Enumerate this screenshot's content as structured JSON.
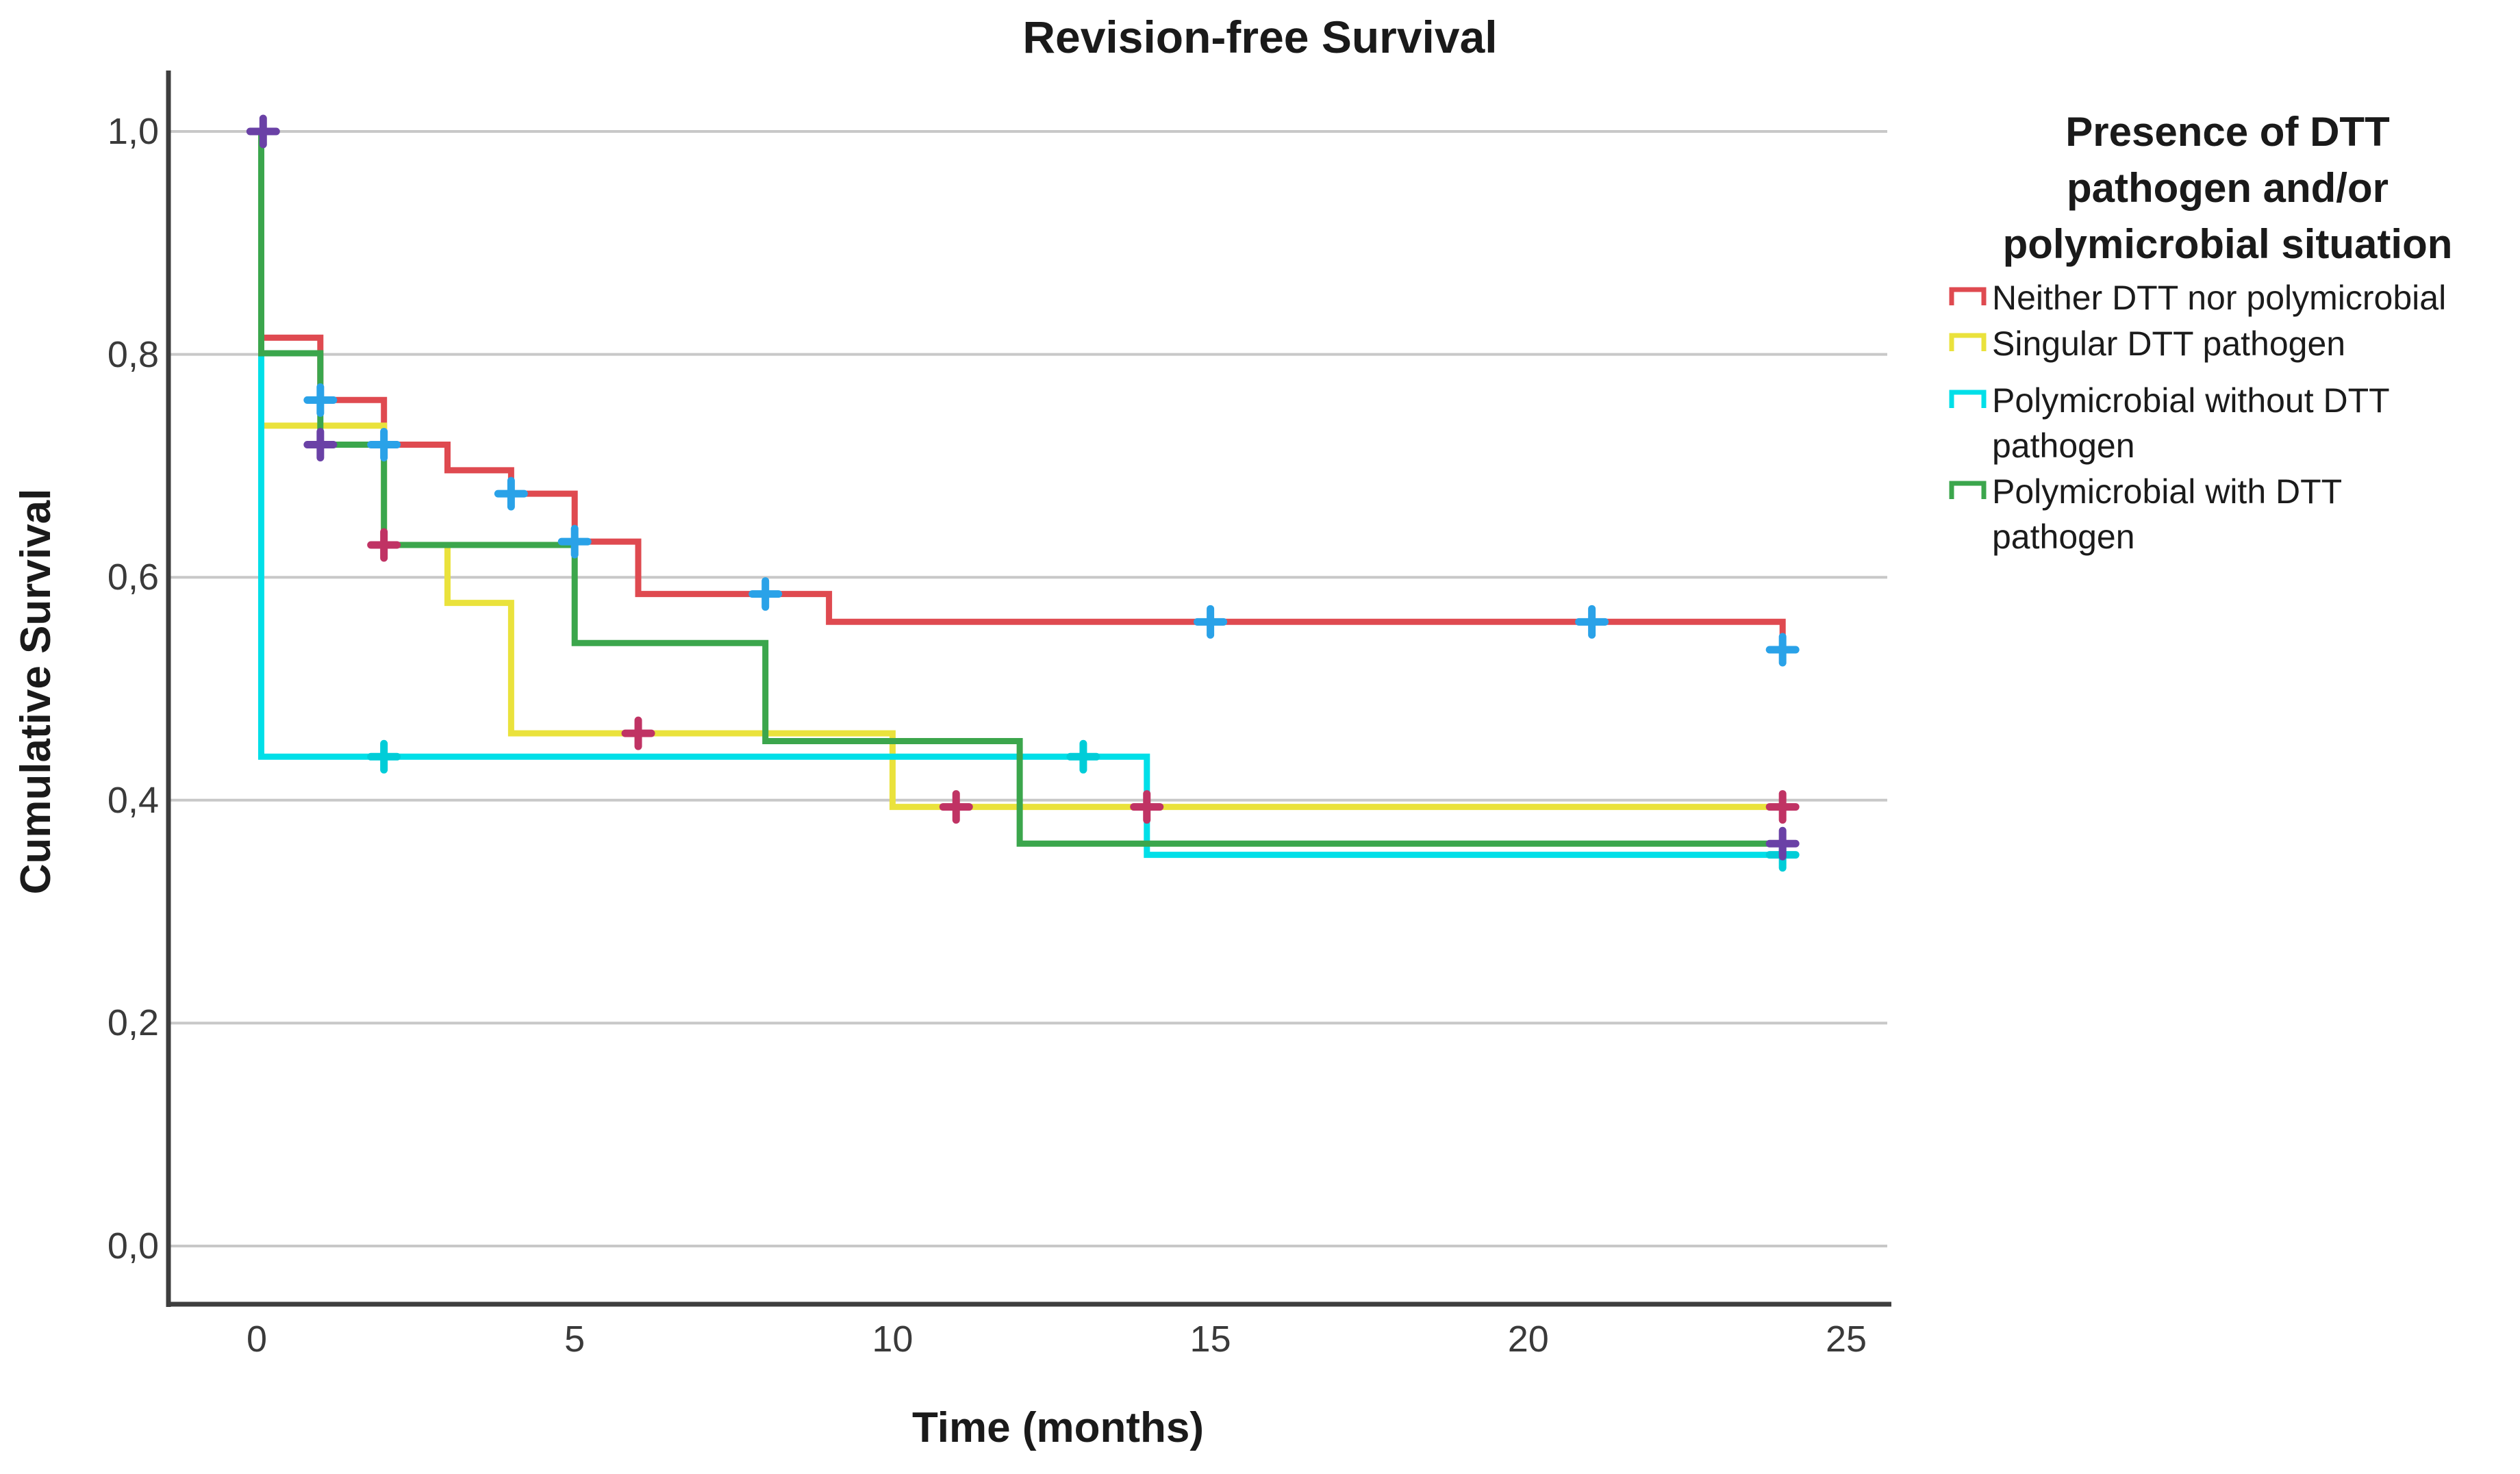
{
  "figure": {
    "title": "Revision-free Survival"
  },
  "chart_data": {
    "type": "line",
    "subtype": "kaplan_meier_step",
    "title": "Revision-free Survival",
    "xlabel": "Time (months)",
    "ylabel": "Cumulative Survival",
    "xlim": [
      0,
      25
    ],
    "ylim": [
      0.0,
      1.0
    ],
    "grid": true,
    "x_ticks": [
      {
        "value": 0,
        "label": "0"
      },
      {
        "value": 5,
        "label": "5"
      },
      {
        "value": 10,
        "label": "10"
      },
      {
        "value": 15,
        "label": "15"
      },
      {
        "value": 20,
        "label": "20"
      },
      {
        "value": 25,
        "label": "25"
      }
    ],
    "y_ticks": [
      {
        "value": 1.0,
        "label": "1,0"
      },
      {
        "value": 0.8,
        "label": "0,8"
      },
      {
        "value": 0.6,
        "label": "0,6"
      },
      {
        "value": 0.4,
        "label": "0,4"
      },
      {
        "value": 0.2,
        "label": "0,2"
      },
      {
        "value": 0.0,
        "label": "0,0"
      }
    ],
    "colors": {
      "grid": "#c8c8c8",
      "axis": "#3e3e3e"
    },
    "series": [
      {
        "key": "neither",
        "name": "Neither DTT nor polymicrobial",
        "color": "#df4a50",
        "censor_color": "#2aa2e8",
        "path": [
          [
            0.07,
            1.0
          ],
          [
            0.07,
            0.815
          ],
          [
            1,
            0.759
          ],
          [
            2,
            0.719
          ],
          [
            3,
            0.696
          ],
          [
            4,
            0.675
          ],
          [
            5,
            0.632
          ],
          [
            6,
            0.585
          ],
          [
            9,
            0.56
          ],
          [
            24,
            0.535
          ]
        ],
        "end_time": 24,
        "censors": [
          [
            1,
            0.759
          ],
          [
            2,
            0.719
          ],
          [
            4,
            0.675
          ],
          [
            5,
            0.632
          ],
          [
            8,
            0.585
          ],
          [
            15,
            0.56
          ],
          [
            21,
            0.56
          ],
          [
            24,
            0.535
          ]
        ]
      },
      {
        "key": "singular-dtt",
        "name": "Singular DTT pathogen",
        "color": "#eae23c",
        "censor_color": "#c03364",
        "path": [
          [
            0.07,
            1.0
          ],
          [
            0.07,
            0.736
          ],
          [
            2,
            0.629
          ],
          [
            3,
            0.577
          ],
          [
            4,
            0.46
          ],
          [
            10,
            0.394
          ]
        ],
        "end_time": 24,
        "censors": [
          [
            2,
            0.629
          ],
          [
            6,
            0.46
          ],
          [
            11,
            0.394
          ],
          [
            14,
            0.394
          ],
          [
            24,
            0.394
          ]
        ]
      },
      {
        "key": "poly-without-dtt",
        "name": "Polymicrobial without DTT pathogen",
        "color": "#00dfe8",
        "censor_color": "#00cdd8",
        "path": [
          [
            0.07,
            1.0
          ],
          [
            0.07,
            0.439
          ],
          [
            14,
            0.351
          ]
        ],
        "end_time": 24,
        "censors": [
          [
            2,
            0.439
          ],
          [
            13,
            0.439
          ],
          [
            24,
            0.351
          ]
        ]
      },
      {
        "key": "poly-with-dtt",
        "name": "Polymicrobial with DTT pathogen",
        "color": "#3ba64c",
        "censor_color": "#6a41a6",
        "path": [
          [
            0.07,
            1.0
          ],
          [
            0.07,
            0.801
          ],
          [
            1,
            0.719
          ],
          [
            2,
            0.629
          ],
          [
            5,
            0.541
          ],
          [
            8,
            0.453
          ],
          [
            12,
            0.361
          ]
        ],
        "end_time": 24,
        "censors": [
          [
            0.1,
            1.0
          ],
          [
            1,
            0.719
          ],
          [
            24,
            0.361
          ]
        ]
      }
    ],
    "legend_position": "right"
  },
  "legend": {
    "title_lines": [
      "Presence of DTT",
      "pathogen and/or",
      "polymicrobial situation"
    ],
    "items": [
      {
        "series": "neither",
        "lines": [
          "Neither DTT nor polymicrobial"
        ]
      },
      {
        "series": "singular-dtt",
        "lines": [
          "Singular DTT pathogen"
        ]
      },
      {
        "series": "poly-without-dtt",
        "lines": [
          "Polymicrobial without DTT",
          "pathogen"
        ]
      },
      {
        "series": "poly-with-dtt",
        "lines": [
          "Polymicrobial with DTT",
          "pathogen"
        ]
      }
    ]
  },
  "axes": {
    "x_label": "Time (months)",
    "y_label": "Cumulative Survival"
  }
}
